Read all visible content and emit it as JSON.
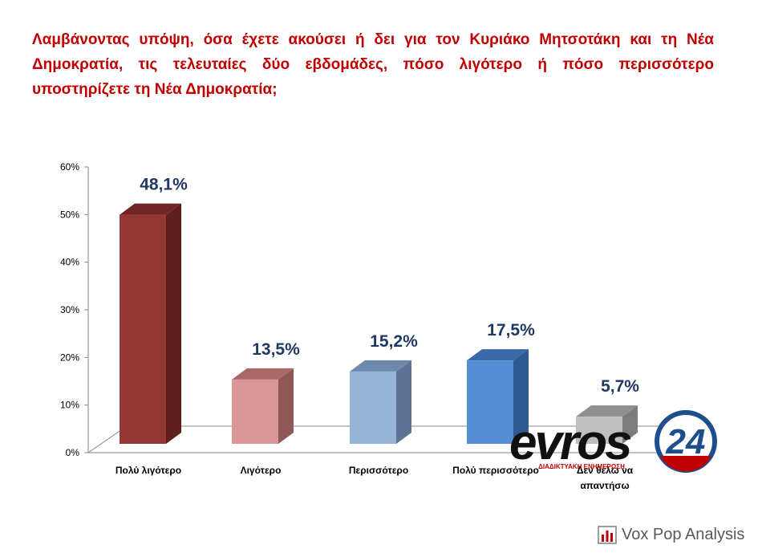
{
  "question": "Λαμβάνοντας υπόψη, όσα έχετε ακούσει ή δει για τον Κυριάκο Μητσοτάκη και τη Νέα Δημοκρατία, τις τελευταίες δύο εβδομάδες, πόσο λιγότερο ή πόσο περισσότερο υποστηρίζετε τη Νέα Δημοκρατία;",
  "chart_data": {
    "type": "bar",
    "title": "",
    "xlabel": "",
    "ylabel": "",
    "ylim": [
      0,
      60
    ],
    "yticks": [
      "0%",
      "10%",
      "20%",
      "30%",
      "40%",
      "50%",
      "60%"
    ],
    "grid": false,
    "legend": "none",
    "categories": [
      [
        "Πολύ λιγότερο"
      ],
      [
        "Λιγότερο"
      ],
      [
        "Περισσότερο"
      ],
      [
        "Πολύ περισσότερο"
      ],
      [
        "Δεν θέλω να",
        "απαντήσω"
      ]
    ],
    "values": [
      48.1,
      13.5,
      15.2,
      17.5,
      5.7
    ],
    "value_labels": [
      "48,1%",
      "13,5%",
      "15,2%",
      "17,5%",
      "5,7%"
    ],
    "colors": [
      {
        "front": "#943634",
        "top": "#6e2523",
        "side": "#5e1f1d"
      },
      {
        "front": "#d99694",
        "top": "#a86866",
        "side": "#8f5755"
      },
      {
        "front": "#95b3d7",
        "top": "#6d88aa",
        "side": "#5d7496"
      },
      {
        "front": "#558ed5",
        "top": "#3a6aa8",
        "side": "#2f5a92"
      },
      {
        "front": "#bfbfbf",
        "top": "#8f8f8f",
        "side": "#7c7c7c"
      }
    ]
  },
  "watermark": {
    "brand": "evros",
    "number": "24",
    "tagline": "ΔΙΑΔΙΚΤΥΑΚΗ ΕΝΗΜΕΡΩΣΗ"
  },
  "logo": {
    "text": "Vox Pop Analysis",
    "icon": "bar-chart-icon",
    "color": "#c00000"
  }
}
